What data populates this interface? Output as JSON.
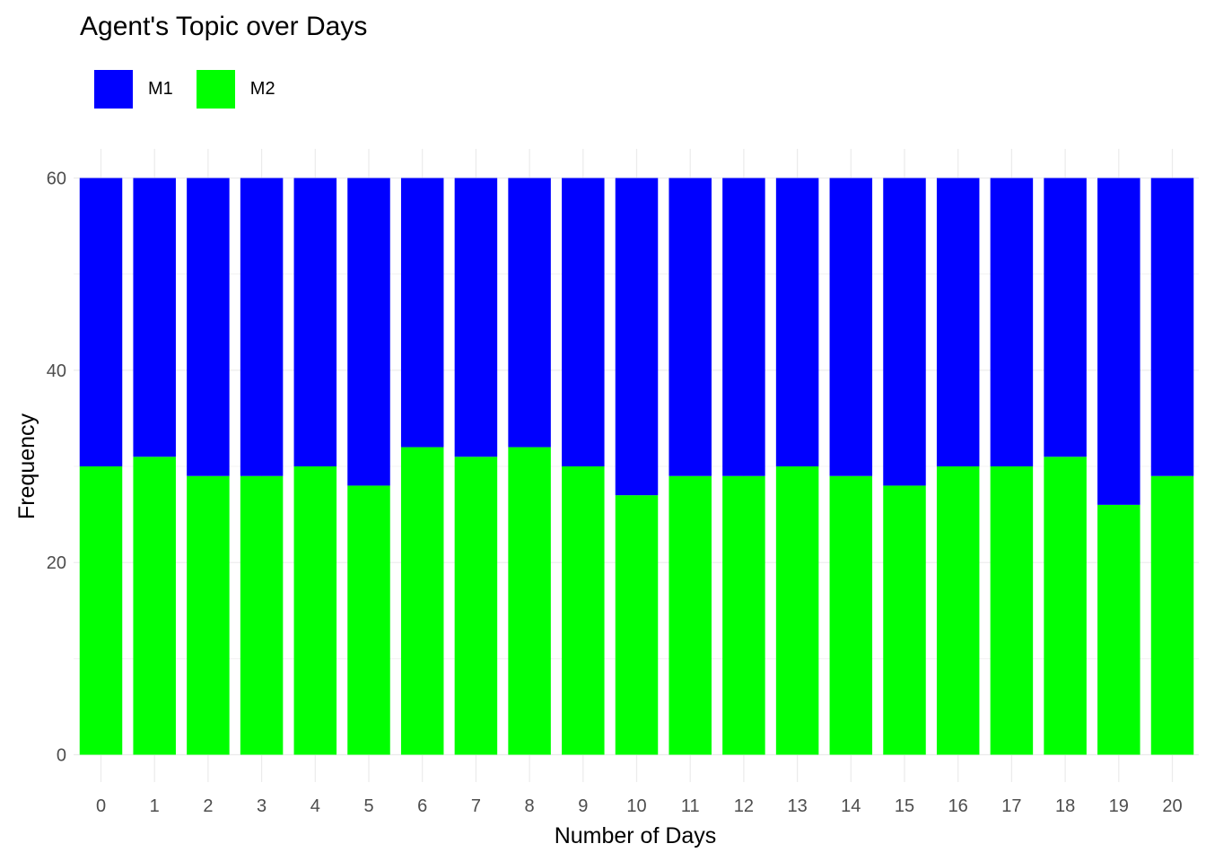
{
  "chart_data": {
    "type": "bar",
    "stacked": true,
    "title": "Agent's Topic over Days",
    "xlabel": "Number of Days",
    "ylabel": "Frequency",
    "ylim": [
      0,
      60
    ],
    "yticks": [
      0,
      20,
      40,
      60
    ],
    "grid": true,
    "legend_position": "top-left",
    "categories": [
      "0",
      "1",
      "2",
      "3",
      "4",
      "5",
      "6",
      "7",
      "8",
      "9",
      "10",
      "11",
      "12",
      "13",
      "14",
      "15",
      "16",
      "17",
      "18",
      "19",
      "20"
    ],
    "series": [
      {
        "name": "M1",
        "color": "#0000FF",
        "values": [
          30,
          29,
          31,
          31,
          30,
          32,
          28,
          29,
          28,
          30,
          33,
          31,
          31,
          30,
          31,
          32,
          30,
          30,
          29,
          34,
          31
        ]
      },
      {
        "name": "M2",
        "color": "#00FF00",
        "values": [
          30,
          31,
          29,
          29,
          30,
          28,
          32,
          31,
          32,
          30,
          27,
          29,
          29,
          30,
          29,
          28,
          30,
          30,
          31,
          26,
          29
        ]
      }
    ]
  }
}
